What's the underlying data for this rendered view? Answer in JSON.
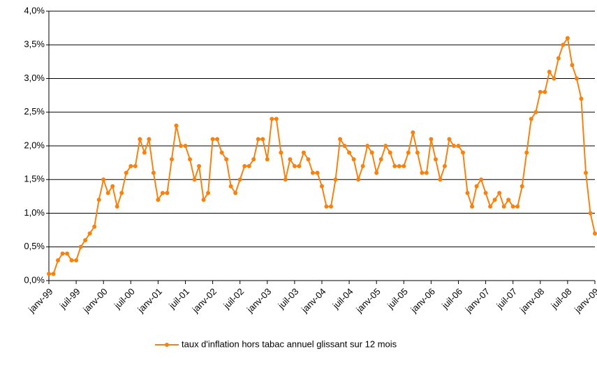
{
  "chart_data": {
    "type": "line",
    "categories": [
      "janv-99",
      null,
      null,
      null,
      null,
      null,
      "juil-99",
      null,
      null,
      null,
      null,
      null,
      "janv-00",
      null,
      null,
      null,
      null,
      null,
      "juil-00",
      null,
      null,
      null,
      null,
      null,
      "janv-01",
      null,
      null,
      null,
      null,
      null,
      "juil-01",
      null,
      null,
      null,
      null,
      null,
      "janv-02",
      null,
      null,
      null,
      null,
      null,
      "juil-02",
      null,
      null,
      null,
      null,
      null,
      "janv-03",
      null,
      null,
      null,
      null,
      null,
      "juil-03",
      null,
      null,
      null,
      null,
      null,
      "janv-04",
      null,
      null,
      null,
      null,
      null,
      "juil-04",
      null,
      null,
      null,
      null,
      null,
      "janv-05",
      null,
      null,
      null,
      null,
      null,
      "juil-05",
      null,
      null,
      null,
      null,
      null,
      "janv-06",
      null,
      null,
      null,
      null,
      null,
      "juil-06",
      null,
      null,
      null,
      null,
      null,
      "janv-07",
      null,
      null,
      null,
      null,
      null,
      "juil-07",
      null,
      null,
      null,
      null,
      null,
      "janv-08",
      null,
      null,
      null,
      null,
      null,
      "juil-08",
      null,
      null,
      null,
      null,
      null,
      "janv-09"
    ],
    "series": [
      {
        "name": "taux d'inflation hors tabac annuel glissant sur 12 mois",
        "color": "#f7820f",
        "values": [
          0.1,
          0.1,
          0.3,
          0.4,
          0.4,
          0.3,
          0.3,
          0.5,
          0.6,
          0.7,
          0.8,
          1.2,
          1.5,
          1.3,
          1.4,
          1.1,
          1.3,
          1.6,
          1.7,
          1.7,
          2.1,
          1.9,
          2.1,
          1.6,
          1.2,
          1.3,
          1.3,
          1.8,
          2.3,
          2.0,
          2.0,
          1.8,
          1.5,
          1.7,
          1.2,
          1.3,
          2.1,
          2.1,
          1.9,
          1.8,
          1.4,
          1.3,
          1.5,
          1.7,
          1.7,
          1.8,
          2.1,
          2.1,
          1.8,
          2.4,
          2.4,
          1.9,
          1.5,
          1.8,
          1.7,
          1.7,
          1.9,
          1.8,
          1.6,
          1.6,
          1.4,
          1.1,
          1.1,
          1.5,
          2.1,
          2.0,
          1.9,
          1.8,
          1.5,
          1.7,
          2.0,
          1.9,
          1.6,
          1.8,
          2.0,
          1.9,
          1.7,
          1.7,
          1.7,
          1.9,
          2.2,
          1.9,
          1.6,
          1.6,
          2.1,
          1.8,
          1.5,
          1.7,
          2.1,
          2.0,
          2.0,
          1.9,
          1.3,
          1.1,
          1.4,
          1.5,
          1.3,
          1.1,
          1.2,
          1.3,
          1.1,
          1.2,
          1.1,
          1.1,
          1.4,
          1.9,
          2.4,
          2.5,
          2.8,
          2.8,
          3.1,
          3.0,
          3.3,
          3.5,
          3.6,
          3.2,
          3.0,
          2.7,
          1.6,
          1.0,
          0.7
        ]
      }
    ],
    "ylim": [
      0,
      4
    ],
    "yticks": [
      {
        "value": 0,
        "label": "0,0%"
      },
      {
        "value": 0.5,
        "label": "0,5%"
      },
      {
        "value": 1,
        "label": "1,0%"
      },
      {
        "value": 1.5,
        "label": "1,5%"
      },
      {
        "value": 2,
        "label": "2,0%"
      },
      {
        "value": 2.5,
        "label": "2,5%"
      },
      {
        "value": 3,
        "label": "3,0%"
      },
      {
        "value": 3.5,
        "label": "3,5%"
      },
      {
        "value": 4,
        "label": "4,0%"
      }
    ],
    "grid": true,
    "legend": "bottom"
  }
}
